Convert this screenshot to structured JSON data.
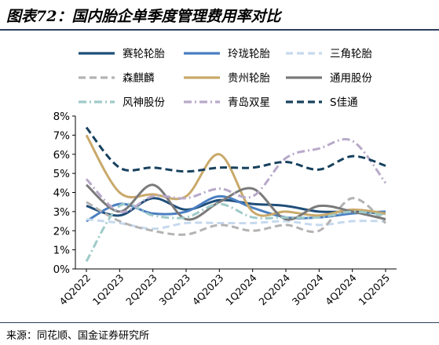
{
  "header": {
    "title": "图表72：国内胎企单季度管理费用率对比"
  },
  "footer": {
    "source": "来源：同花顺、国金证券研究所"
  },
  "chart_data": {
    "type": "line",
    "x": [
      "4Q2022",
      "1Q2023",
      "2Q2023",
      "3Q2023",
      "4Q2023",
      "1Q2024",
      "2Q2024",
      "3Q2024",
      "4Q2024",
      "1Q2025"
    ],
    "ylim": [
      0,
      8
    ],
    "yticks": [
      0,
      1,
      2,
      3,
      4,
      5,
      6,
      7,
      8
    ],
    "ytick_labels": [
      "0%",
      "1%",
      "2%",
      "3%",
      "4%",
      "5%",
      "6%",
      "7%",
      "8%"
    ],
    "grid": false,
    "legend_position": "top",
    "series": [
      {
        "name": "赛轮轮胎",
        "color": "#1f4e79",
        "dash": "solid",
        "values": [
          3.3,
          2.8,
          3.7,
          3.1,
          3.6,
          3.4,
          3.3,
          3.0,
          3.0,
          2.9
        ]
      },
      {
        "name": "玲珑轮胎",
        "color": "#4a7fc1",
        "dash": "solid",
        "values": [
          2.5,
          3.4,
          2.9,
          3.0,
          3.8,
          3.2,
          2.7,
          2.7,
          2.9,
          3.0
        ]
      },
      {
        "name": "三角轮胎",
        "color": "#c6d9ee",
        "dash": "dash",
        "values": [
          2.6,
          2.4,
          2.1,
          2.4,
          2.4,
          2.4,
          2.5,
          2.3,
          2.5,
          2.5
        ]
      },
      {
        "name": "森麒麟",
        "color": "#b3b3b3",
        "dash": "dash",
        "values": [
          3.5,
          2.5,
          2.0,
          1.8,
          2.3,
          2.0,
          2.3,
          2.0,
          3.7,
          2.4
        ]
      },
      {
        "name": "贵州轮胎",
        "color": "#c9a96a",
        "dash": "solid",
        "values": [
          7.0,
          4.0,
          3.9,
          3.8,
          6.0,
          3.0,
          3.0,
          2.8,
          3.1,
          2.9
        ]
      },
      {
        "name": "通用股份",
        "color": "#7a7a7a",
        "dash": "solid",
        "values": [
          4.4,
          3.0,
          4.4,
          2.6,
          3.5,
          4.2,
          2.6,
          3.3,
          3.0,
          2.6
        ]
      },
      {
        "name": "风神股份",
        "color": "#9fcac9",
        "dash": "dashdot",
        "values": [
          0.4,
          3.3,
          2.8,
          2.7,
          3.4,
          2.7,
          2.7,
          2.7,
          3.0,
          2.8
        ]
      },
      {
        "name": "青岛双星",
        "color": "#b8a9c9",
        "dash": "dashdot",
        "values": [
          4.7,
          3.0,
          3.8,
          3.7,
          4.2,
          3.8,
          5.8,
          6.3,
          6.7,
          4.5
        ]
      },
      {
        "name": "S佳通",
        "color": "#17415e",
        "dash": "dash",
        "values": [
          7.4,
          5.3,
          5.3,
          5.1,
          5.3,
          5.3,
          5.6,
          5.2,
          5.9,
          5.4
        ]
      }
    ]
  }
}
